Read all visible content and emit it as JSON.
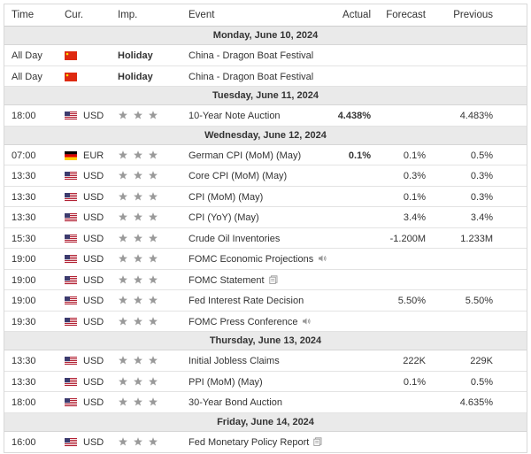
{
  "headers": {
    "time": "Time",
    "currency": "Cur.",
    "importance": "Imp.",
    "event": "Event",
    "actual": "Actual",
    "forecast": "Forecast",
    "previous": "Previous"
  },
  "colors": {
    "day_bg": "#eaeaea",
    "star": "#9a9a9a",
    "us_red": "#b22234",
    "us_blue": "#3c3b6e",
    "cn_red": "#de2910",
    "de_black": "#000000",
    "de_red": "#dd0000",
    "de_gold": "#ffce00"
  },
  "days": {
    "d0": {
      "label": "Monday, June 10, 2024"
    },
    "d1": {
      "label": "Tuesday, June 11, 2024"
    },
    "d2": {
      "label": "Wednesday, June 12, 2024"
    },
    "d3": {
      "label": "Thursday, June 13, 2024"
    },
    "d4": {
      "label": "Friday, June 14, 2024"
    }
  },
  "events": [
    {
      "time": "All Day",
      "country": "CN",
      "currency": "",
      "importance": "Holiday",
      "stars": 0,
      "event": "China - Dragon Boat Festival",
      "icon": "",
      "actual": "",
      "forecast": "",
      "previous": ""
    },
    {
      "time": "All Day",
      "country": "CN",
      "currency": "",
      "importance": "Holiday",
      "stars": 0,
      "event": "China - Dragon Boat Festival",
      "icon": "",
      "actual": "",
      "forecast": "",
      "previous": ""
    },
    {
      "time": "18:00",
      "country": "US",
      "currency": "USD",
      "importance": "",
      "stars": 3,
      "event": "10-Year Note Auction",
      "icon": "",
      "actual": "4.438%",
      "forecast": "",
      "previous": "4.483%"
    },
    {
      "time": "07:00",
      "country": "DE",
      "currency": "EUR",
      "importance": "",
      "stars": 3,
      "event": "German CPI (MoM) (May)",
      "icon": "",
      "actual": "0.1%",
      "forecast": "0.1%",
      "previous": "0.5%"
    },
    {
      "time": "13:30",
      "country": "US",
      "currency": "USD",
      "importance": "",
      "stars": 3,
      "event": "Core CPI (MoM) (May)",
      "icon": "",
      "actual": "",
      "forecast": "0.3%",
      "previous": "0.3%"
    },
    {
      "time": "13:30",
      "country": "US",
      "currency": "USD",
      "importance": "",
      "stars": 3,
      "event": "CPI (MoM) (May)",
      "icon": "",
      "actual": "",
      "forecast": "0.1%",
      "previous": "0.3%"
    },
    {
      "time": "13:30",
      "country": "US",
      "currency": "USD",
      "importance": "",
      "stars": 3,
      "event": "CPI (YoY) (May)",
      "icon": "",
      "actual": "",
      "forecast": "3.4%",
      "previous": "3.4%"
    },
    {
      "time": "15:30",
      "country": "US",
      "currency": "USD",
      "importance": "",
      "stars": 3,
      "event": "Crude Oil Inventories",
      "icon": "",
      "actual": "",
      "forecast": "-1.200M",
      "previous": "1.233M"
    },
    {
      "time": "19:00",
      "country": "US",
      "currency": "USD",
      "importance": "",
      "stars": 3,
      "event": "FOMC Economic Projections",
      "icon": "speaker-icon",
      "actual": "",
      "forecast": "",
      "previous": ""
    },
    {
      "time": "19:00",
      "country": "US",
      "currency": "USD",
      "importance": "",
      "stars": 3,
      "event": "FOMC Statement",
      "icon": "document-icon",
      "actual": "",
      "forecast": "",
      "previous": ""
    },
    {
      "time": "19:00",
      "country": "US",
      "currency": "USD",
      "importance": "",
      "stars": 3,
      "event": "Fed Interest Rate Decision",
      "icon": "",
      "actual": "",
      "forecast": "5.50%",
      "previous": "5.50%"
    },
    {
      "time": "19:30",
      "country": "US",
      "currency": "USD",
      "importance": "",
      "stars": 3,
      "event": "FOMC Press Conference",
      "icon": "speaker-icon",
      "actual": "",
      "forecast": "",
      "previous": ""
    },
    {
      "time": "13:30",
      "country": "US",
      "currency": "USD",
      "importance": "",
      "stars": 3,
      "event": "Initial Jobless Claims",
      "icon": "",
      "actual": "",
      "forecast": "222K",
      "previous": "229K"
    },
    {
      "time": "13:30",
      "country": "US",
      "currency": "USD",
      "importance": "",
      "stars": 3,
      "event": "PPI (MoM) (May)",
      "icon": "",
      "actual": "",
      "forecast": "0.1%",
      "previous": "0.5%"
    },
    {
      "time": "18:00",
      "country": "US",
      "currency": "USD",
      "importance": "",
      "stars": 3,
      "event": "30-Year Bond Auction",
      "icon": "",
      "actual": "",
      "forecast": "",
      "previous": "4.635%"
    },
    {
      "time": "16:00",
      "country": "US",
      "currency": "USD",
      "importance": "",
      "stars": 3,
      "event": "Fed Monetary Policy Report",
      "icon": "document-icon",
      "actual": "",
      "forecast": "",
      "previous": ""
    }
  ]
}
